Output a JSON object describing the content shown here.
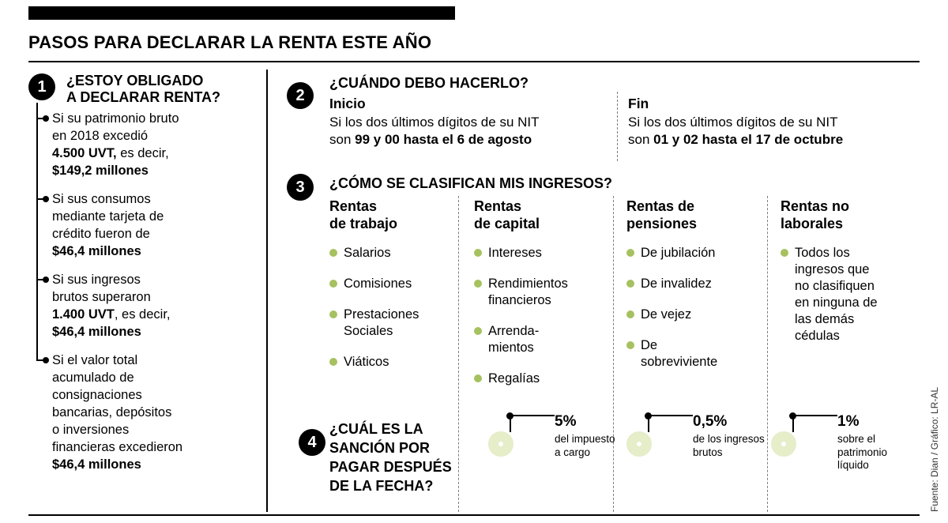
{
  "header": {
    "title": "PASOS PARA DECLARAR LA RENTA ESTE AÑO"
  },
  "colors": {
    "bullet_green": "#a6c15f",
    "donut_ring": "#e6edc9",
    "ink": "#000000"
  },
  "section1": {
    "number": "1",
    "title": "¿ESTOY OBLIGADO\nA DECLARAR RENTA?",
    "items": [
      {
        "n1": "Si su patrimonio bruto\nen 2018 excedió\n",
        "b1": "4.500 UVT,",
        "n2": " es decir,\n",
        "b2": "$149,2 millones"
      },
      {
        "n1": "Si sus consumos\nmediante tarjeta de\ncrédito fueron de\n",
        "b1": "$46,4 millones"
      },
      {
        "n1": "Si sus ingresos\nbrutos superaron\n",
        "b1": "1.400 UVT",
        "n2": ", es decir,\n",
        "b2": "$46,4 millones"
      },
      {
        "n1": "Si el valor total\nacumulado de\nconsignaciones\nbancarias, depósitos\no inversiones\nfinancieras excedieron\n",
        "b1": "$46,4 millones"
      }
    ]
  },
  "section2": {
    "number": "2",
    "title": "¿CUÁNDO DEBO HACERLO?",
    "inicio": {
      "label": "Inicio",
      "n1": "Si los dos últimos dígitos de su NIT\nson ",
      "b1": "99 y 00 hasta el 6 de agosto"
    },
    "fin": {
      "label": "Fin",
      "n1": "Si los dos últimos dígitos de su NIT\nson ",
      "b1": "01 y 02 hasta el 17 de octubre"
    }
  },
  "section3": {
    "number": "3",
    "title": "¿CÓMO SE CLASIFICAN MIS INGRESOS?",
    "columns": [
      {
        "header": "Rentas\nde trabajo",
        "items": [
          "Salarios",
          "Comisiones",
          "Prestaciones\nSociales",
          "Viáticos"
        ]
      },
      {
        "header": "Rentas\nde capital",
        "items": [
          "Intereses",
          "Rendimientos\nfinancieros",
          "Arrenda-\nmientos",
          "Regalías"
        ]
      },
      {
        "header": "Rentas de\npensiones",
        "items": [
          "De jubilación",
          "De invalidez",
          "De vejez",
          "De\nsobreviviente"
        ]
      },
      {
        "header": "Rentas no\nlaborales",
        "items": [
          "Todos los\ningresos que\nno clasifiquen\nen ninguna de\nlas demás\ncédulas"
        ]
      }
    ]
  },
  "section4": {
    "number": "4",
    "title": "¿CUÁL ES LA\nSANCIÓN POR\nPAGAR DESPUÉS\nDE LA FECHA?",
    "penalties": [
      {
        "value": "5%",
        "desc": "del impuesto\na cargo"
      },
      {
        "value": "0,5%",
        "desc": "de los ingresos\nbrutos"
      },
      {
        "value": "1%",
        "desc": "sobre el\npatrimonio\nlíquido"
      }
    ]
  },
  "footer": {
    "credit": "Fuente: Dian / Gráfico: LR-AL"
  }
}
